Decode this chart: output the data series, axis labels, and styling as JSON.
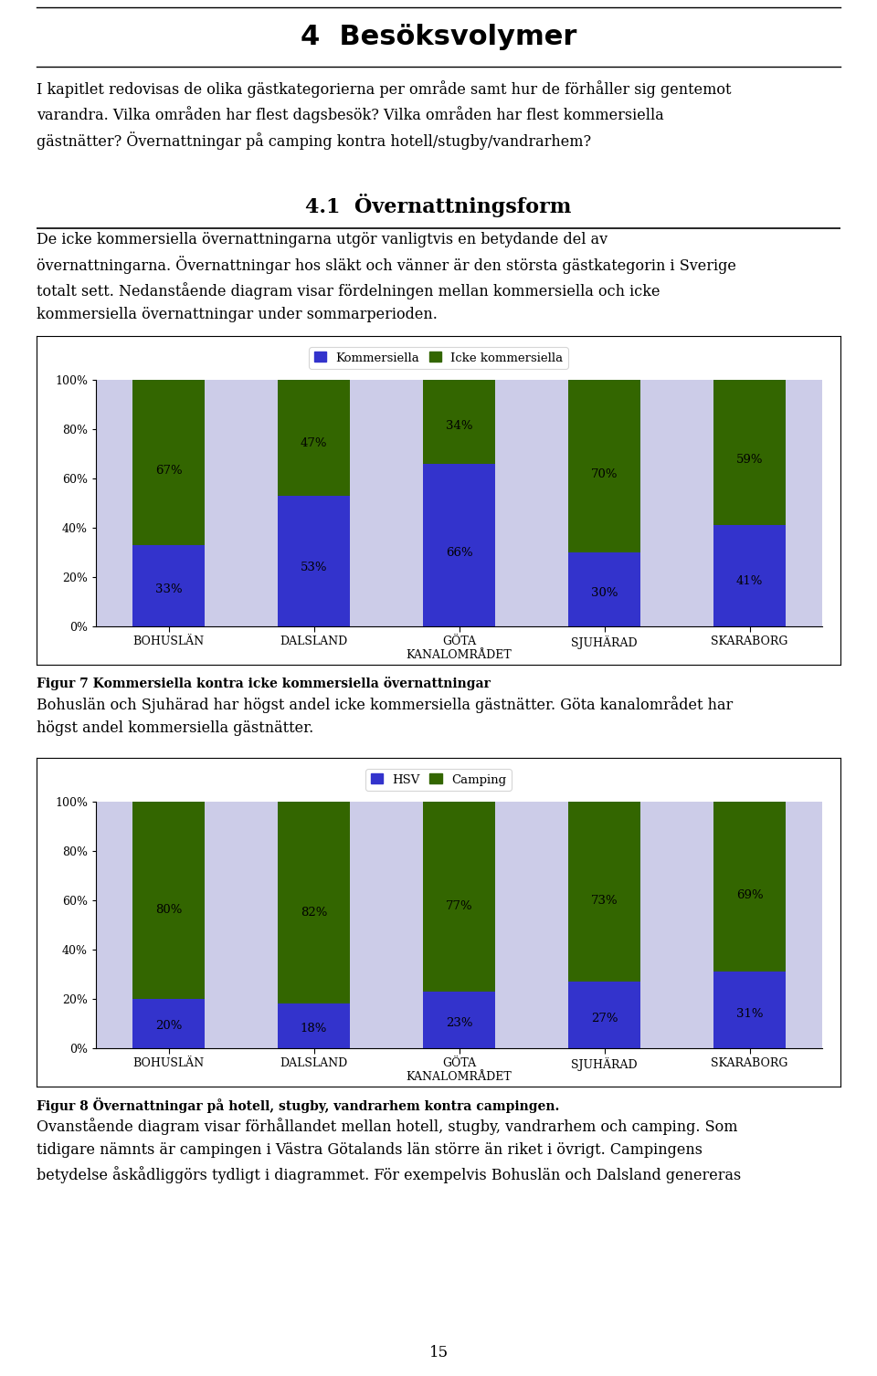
{
  "page_title": "4  Besöksvolymer",
  "intro_lines": [
    "I kapitlet redovisas de olika gästkategorierna per område samt hur de förhåller sig gentemot",
    "varandra. Vilka områden har flest dagsbesök? Vilka områden har flest kommersiella",
    "gästnätter? Övernattningar på camping kontra hotell/stugby/vandrarhem?"
  ],
  "section_title": "4.1  Övernattningsform",
  "section_lines": [
    "De icke kommersiella övernattningarna utgör vanligtvis en betydande del av",
    "övernattningarna. Övernattningar hos släkt och vänner är den största gästkategorin i Sverige",
    "totalt sett. Nedanstående diagram visar fördelningen mellan kommersiella och icke",
    "kommersiella övernattningar under sommarperioden."
  ],
  "chart1": {
    "legend": [
      "Kommersiella",
      "Icke kommersiella"
    ],
    "categories": [
      "BOHUSLÄN",
      "DALSLAND",
      "GÖTA\nKANALOMRÅDET",
      "SJUHÄRAD",
      "SKARABORG"
    ],
    "kommersiella": [
      33,
      53,
      66,
      30,
      41
    ],
    "icke_kommersiella": [
      67,
      47,
      34,
      70,
      59
    ],
    "bg_color": "#cccce8",
    "bar_color_komm": "#3333cc",
    "bar_color_icke": "#336600"
  },
  "fig7_caption": "Figur 7 Kommersiella kontra icke kommersiella övernattningar",
  "fig7_lines": [
    "Bohuslän och Sjuhärad har högst andel icke kommersiella gästnätter. Göta kanalområdet har",
    "högst andel kommersiella gästnätter."
  ],
  "chart2": {
    "legend": [
      "HSV",
      "Camping"
    ],
    "categories": [
      "BOHUSLÄN",
      "DALSLAND",
      "GÖTA\nKANALOMRÅDET",
      "SJUHÄRAD",
      "SKARABORG"
    ],
    "hsv": [
      20,
      18,
      23,
      27,
      31
    ],
    "camping": [
      80,
      82,
      77,
      73,
      69
    ],
    "bg_color": "#cccce8",
    "bar_color_hsv": "#3333cc",
    "bar_color_camping": "#336600"
  },
  "fig8_caption": "Figur 8 Övernattningar på hotell, stugby, vandrarhem kontra campingen.",
  "fig8_lines": [
    "Ovanstående diagram visar förhållandet mellan hotell, stugby, vandrarhem och camping. Som",
    "tidigare nämnts är campingen i Västra Götalands län större än riket i övrigt. Campingens",
    "betydelse åskådliggörs tydligt i diagrammet. För exempelvis Bohuslän och Dalsland genereras"
  ],
  "page_number": "15"
}
